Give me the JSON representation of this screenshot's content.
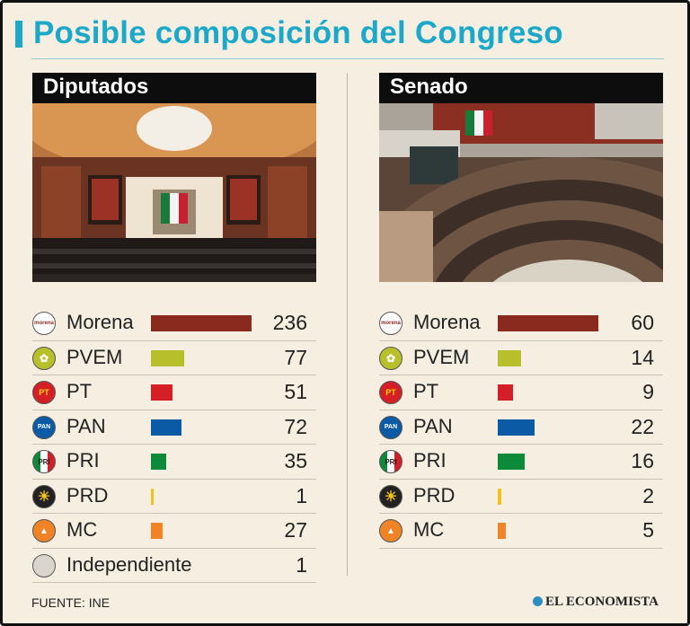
{
  "title": "Posible composición del Congreso",
  "source": "FUENTE: INE",
  "brand": "EL ECONOMISTA",
  "colors": {
    "accent": "#1ba8c9",
    "background": "#f6efe1",
    "Morena": "#8a2a1f",
    "PVEM": "#b7c02a",
    "PT": "#d41f26",
    "PAN": "#0a5aa5",
    "PRI": "#0c8a3a",
    "PRD": "#f0c21a",
    "MC": "#f08326",
    "Independiente": "#d9d4cc"
  },
  "logo_text": {
    "Morena": "morena",
    "PT": "PT",
    "PAN": "PAN",
    "PRI": "PRI"
  },
  "icons": [
    "photo-chamber-of-deputies",
    "photo-senate-chamber",
    "party-logo-icon"
  ],
  "chart_data": [
    {
      "type": "bar",
      "orientation": "horizontal",
      "title": "Diputados",
      "categories": [
        "Morena",
        "PVEM",
        "PT",
        "PAN",
        "PRI",
        "PRD",
        "MC",
        "Independiente"
      ],
      "values": [
        236,
        77,
        51,
        72,
        35,
        1,
        27,
        1
      ],
      "labels": [
        "236",
        "77",
        "51",
        "72",
        "35",
        "1",
        "27",
        "1"
      ],
      "xlim": [
        0,
        236
      ]
    },
    {
      "type": "bar",
      "orientation": "horizontal",
      "title": "Senado",
      "categories": [
        "Morena",
        "PVEM",
        "PT",
        "PAN",
        "PRI",
        "PRD",
        "MC"
      ],
      "values": [
        60,
        14,
        9,
        22,
        16,
        2,
        5
      ],
      "labels": [
        "60",
        "14",
        "9",
        "22",
        "16",
        "2",
        "5"
      ],
      "xlim": [
        0,
        60
      ]
    }
  ]
}
